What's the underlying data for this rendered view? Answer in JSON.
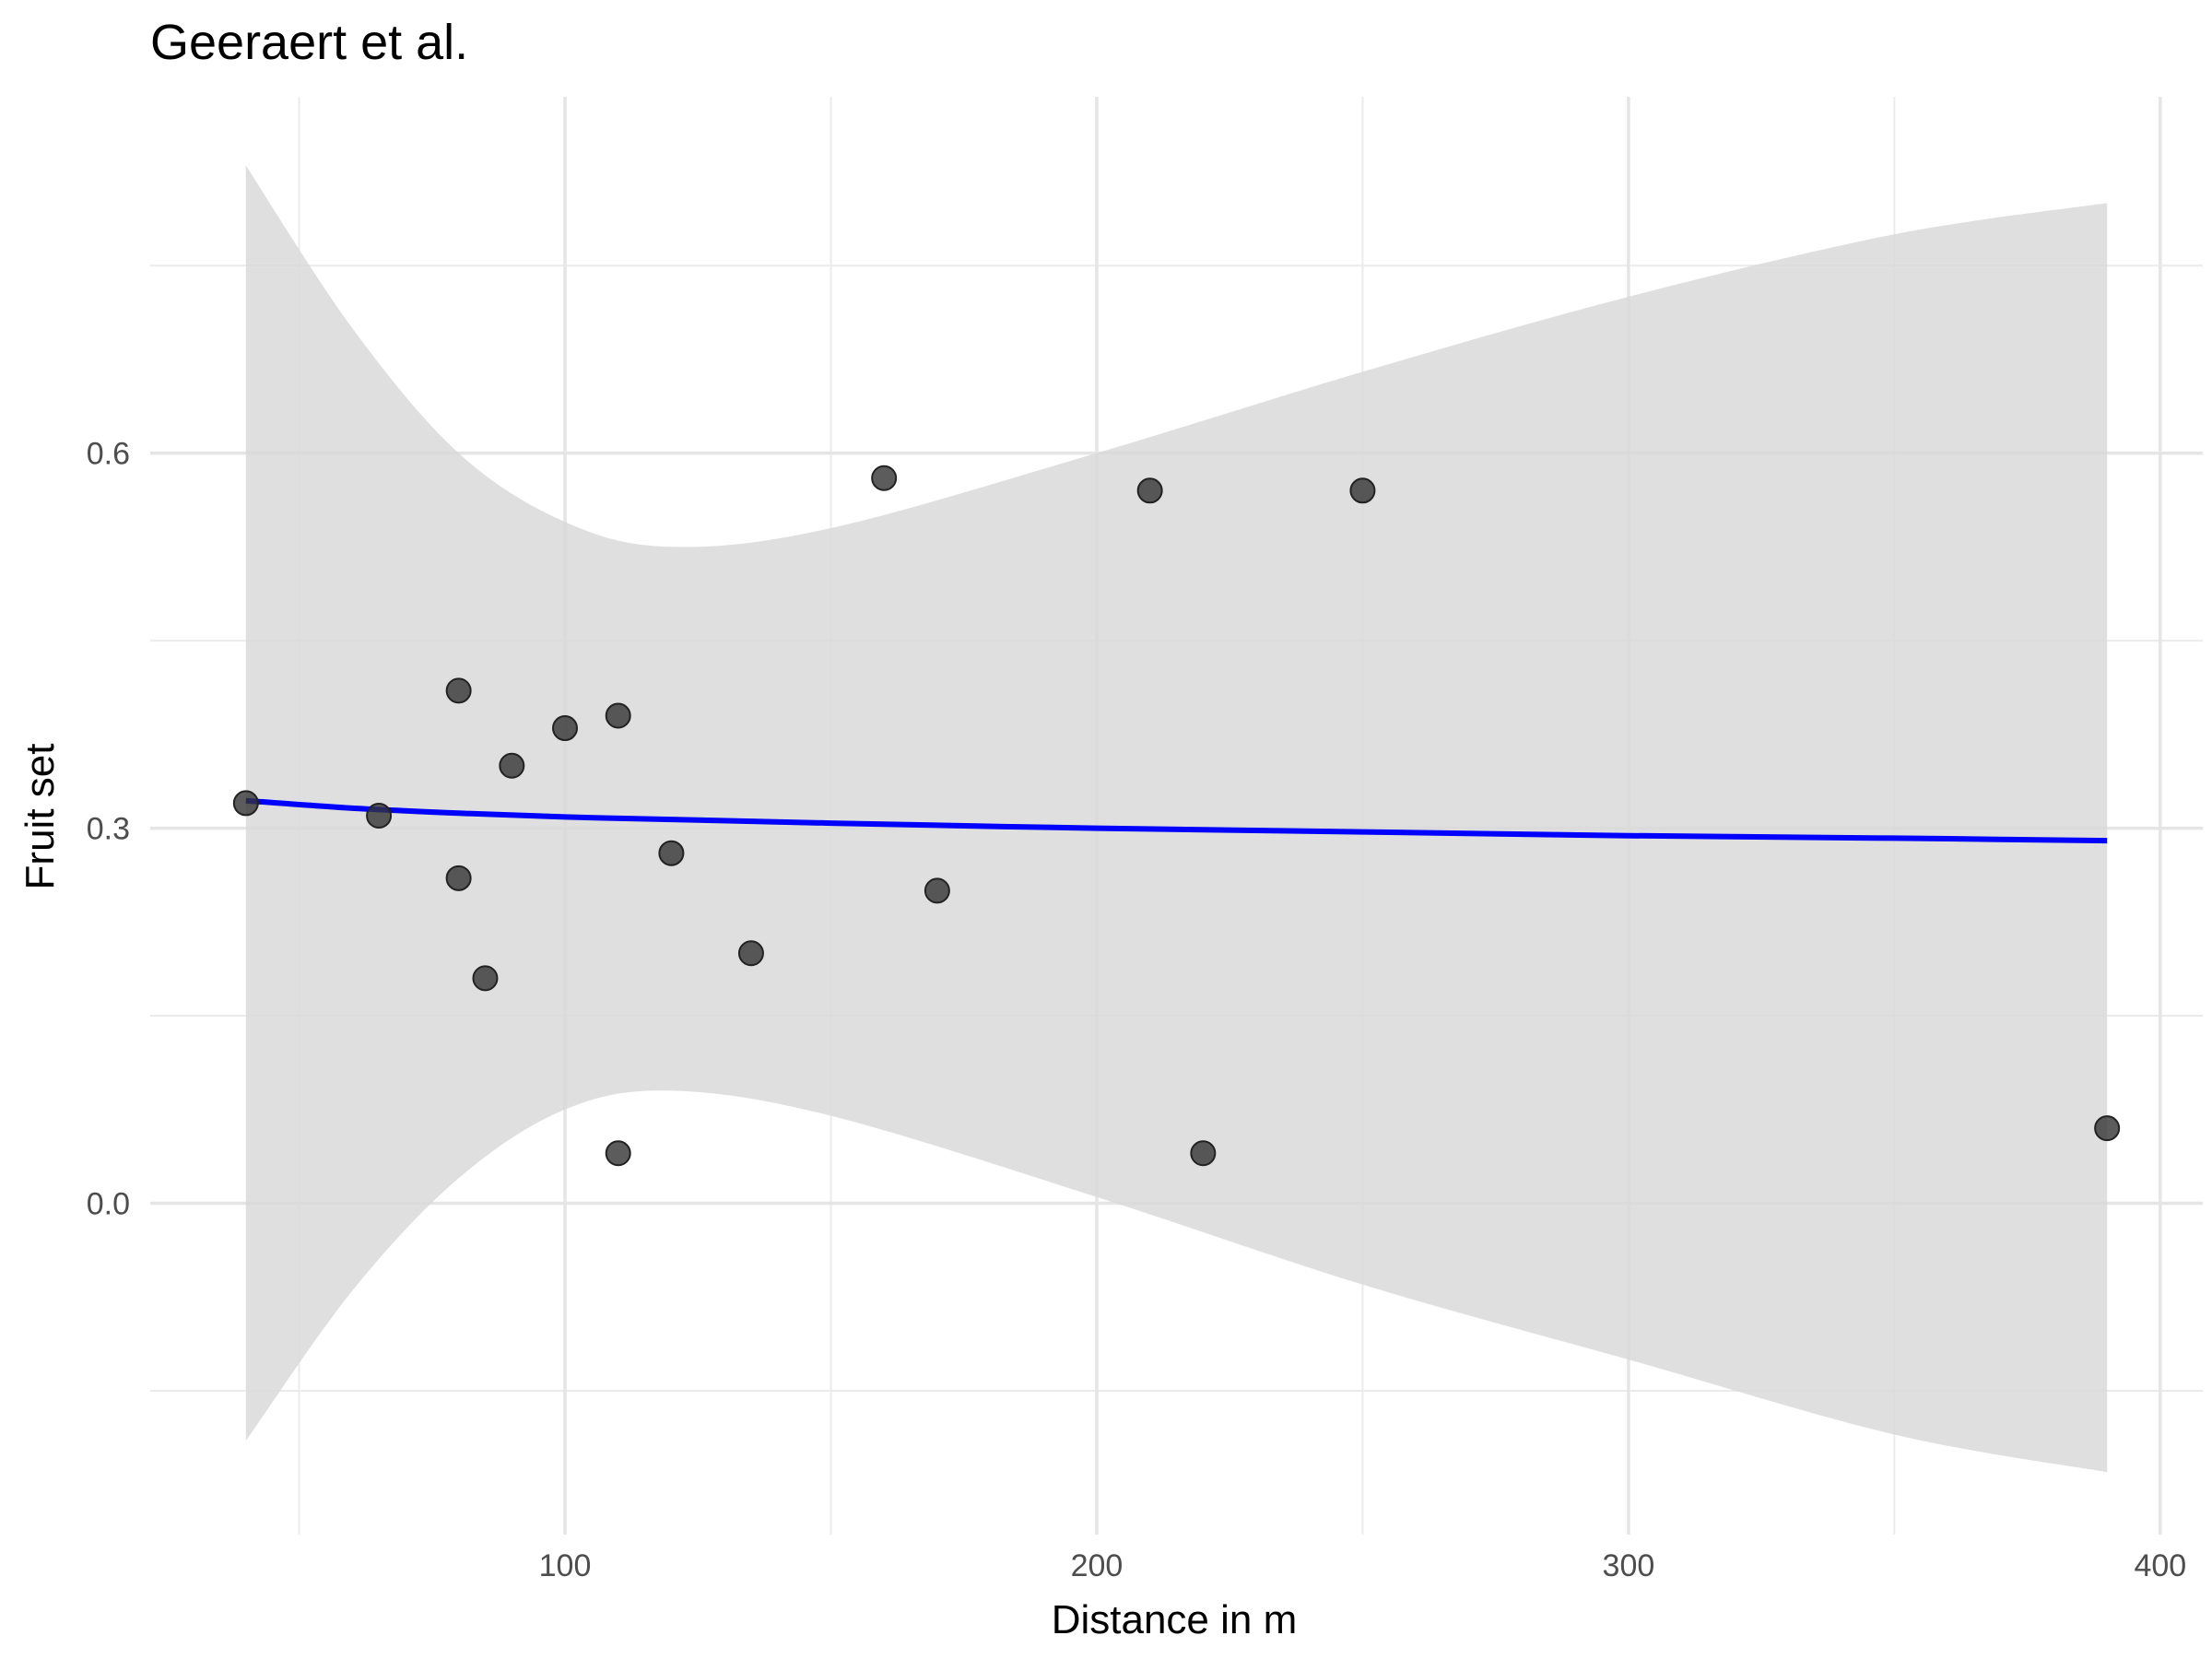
{
  "chart_data": {
    "type": "scatter",
    "title": "Geeraert et al.",
    "xlabel": "Distance in m",
    "ylabel": "Fruit set",
    "xlim": [
      22,
      408
    ],
    "ylim": [
      -0.265,
      0.885
    ],
    "x_ticks": [
      100,
      200,
      300,
      400
    ],
    "x_tick_labels": [
      "100",
      "200",
      "300",
      "400"
    ],
    "x_minor_ticks": [
      50,
      150,
      250,
      350
    ],
    "y_ticks": [
      0.0,
      0.3,
      0.6
    ],
    "y_tick_labels": [
      "0.0",
      "0.3",
      "0.6"
    ],
    "y_minor_ticks": [
      -0.15,
      0.15,
      0.45,
      0.75
    ],
    "grid": true,
    "legend": "none",
    "point_color": "#333333",
    "line_color": "#0000ff",
    "ribbon_color": "#d9d9d9",
    "series": [
      {
        "type": "points",
        "points": [
          {
            "x": 40,
            "y": 0.32
          },
          {
            "x": 65,
            "y": 0.31
          },
          {
            "x": 80,
            "y": 0.41
          },
          {
            "x": 80,
            "y": 0.26
          },
          {
            "x": 85,
            "y": 0.18
          },
          {
            "x": 90,
            "y": 0.35
          },
          {
            "x": 100,
            "y": 0.38
          },
          {
            "x": 110,
            "y": 0.39
          },
          {
            "x": 110,
            "y": 0.04
          },
          {
            "x": 120,
            "y": 0.28
          },
          {
            "x": 135,
            "y": 0.2
          },
          {
            "x": 160,
            "y": 0.58
          },
          {
            "x": 170,
            "y": 0.25
          },
          {
            "x": 210,
            "y": 0.57
          },
          {
            "x": 220,
            "y": 0.04
          },
          {
            "x": 250,
            "y": 0.57
          },
          {
            "x": 390,
            "y": 0.06
          }
        ]
      },
      {
        "type": "smooth",
        "x": [
          40,
          60,
          80,
          100,
          120,
          150,
          200,
          250,
          300,
          350,
          390
        ],
        "y": [
          0.322,
          0.316,
          0.312,
          0.309,
          0.307,
          0.304,
          0.3,
          0.297,
          0.294,
          0.292,
          0.29
        ],
        "lower": [
          -0.19,
          -0.07,
          0.02,
          0.075,
          0.09,
          0.07,
          0.005,
          -0.065,
          -0.125,
          -0.185,
          -0.215
        ],
        "upper": [
          0.83,
          0.7,
          0.6,
          0.545,
          0.525,
          0.54,
          0.6,
          0.665,
          0.725,
          0.775,
          0.8
        ]
      }
    ]
  }
}
